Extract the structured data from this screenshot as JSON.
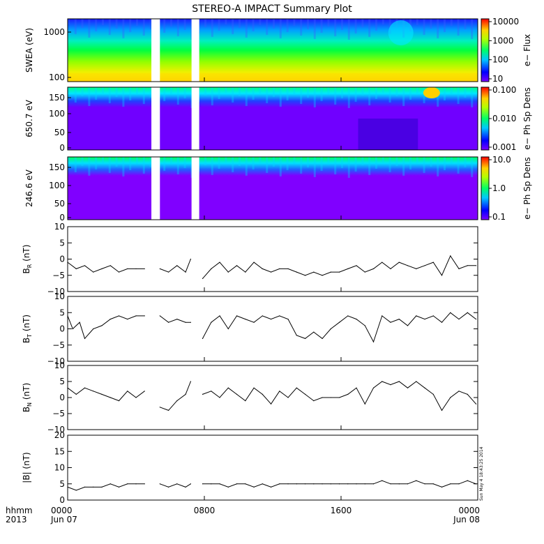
{
  "title": "STEREO-A IMPACT Summary Plot",
  "time_axis": {
    "row1_label": "hhmm",
    "row2_label": "2013",
    "ticks": [
      {
        "hours": 0,
        "time": "0000",
        "date": "Jun 07"
      },
      {
        "hours": 8,
        "time": "0800",
        "date": ""
      },
      {
        "hours": 16,
        "time": "1600",
        "date": ""
      },
      {
        "hours": 24,
        "time": "0000",
        "date": "Jun 08"
      }
    ]
  },
  "gaps_hours": [
    [
      4.9,
      5.4
    ],
    [
      7.25,
      7.7
    ]
  ],
  "spectrograms": [
    {
      "id": "swea",
      "ylabel": "SWEA (eV)",
      "yticks": [
        "1000",
        "100"
      ],
      "cbar_label": "e− Flux",
      "cbar_ticks": [
        "10000",
        "1000",
        "100",
        "10"
      ]
    },
    {
      "id": "pad650",
      "ylabel": "650.7 eV",
      "yticks": [
        "150",
        "100",
        "50",
        "0"
      ],
      "cbar_label": "e− Ph Sp Dens",
      "cbar_ticks": [
        "0.100",
        "0.010",
        "0.001"
      ]
    },
    {
      "id": "pad246",
      "ylabel": "246.6 eV",
      "yticks": [
        "150",
        "100",
        "50",
        "0"
      ],
      "cbar_label": "e− Ph Sp Dens",
      "cbar_ticks": [
        "10.0",
        "1.0",
        "0.1"
      ]
    }
  ],
  "stamp": "Sun May  4 18:43:25 2014",
  "chart_data": [
    {
      "type": "line",
      "id": "br",
      "ylabel": "B_R (nT)",
      "ylim": [
        -10,
        10
      ],
      "yticks": [
        "10",
        "5",
        "0",
        "−5",
        "−10"
      ],
      "x_hours": [
        0,
        0.5,
        1,
        1.5,
        2,
        2.5,
        3,
        3.5,
        4,
        4.5,
        5.4,
        5.9,
        6.4,
        6.9,
        7.2,
        7.9,
        8.4,
        8.9,
        9.4,
        9.9,
        10.4,
        10.9,
        11.4,
        11.9,
        12.4,
        12.9,
        13.4,
        13.9,
        14.4,
        14.9,
        15.4,
        15.9,
        16.4,
        16.9,
        17.4,
        17.9,
        18.4,
        18.9,
        19.4,
        19.9,
        20.4,
        20.9,
        21.4,
        21.9,
        22.4,
        22.9,
        23.4,
        23.9
      ],
      "values": [
        -1,
        -3,
        -2,
        -4,
        -3,
        -2,
        -4,
        -3,
        -3,
        -3,
        -3,
        -4,
        -2,
        -4,
        0,
        -6,
        -3,
        -1,
        -4,
        -2,
        -4,
        -1,
        -3,
        -4,
        -3,
        -3,
        -4,
        -5,
        -4,
        -5,
        -4,
        -4,
        -3,
        -2,
        -4,
        -3,
        -1,
        -3,
        -1,
        -2,
        -3,
        -2,
        -1,
        -5,
        1,
        -3,
        -2,
        -2
      ]
    },
    {
      "type": "line",
      "id": "bt",
      "ylabel": "B_T (nT)",
      "ylim": [
        -10,
        10
      ],
      "yticks": [
        "10",
        "5",
        "0",
        "−5",
        "−10"
      ],
      "x_hours": [
        0,
        0.3,
        0.7,
        1,
        1.5,
        2,
        2.5,
        3,
        3.5,
        4,
        4.5,
        5.4,
        5.9,
        6.4,
        6.9,
        7.2,
        7.9,
        8.4,
        8.9,
        9.4,
        9.9,
        10.4,
        10.9,
        11.4,
        11.9,
        12.4,
        12.9,
        13.4,
        13.9,
        14.4,
        14.9,
        15.4,
        15.9,
        16.4,
        16.9,
        17.4,
        17.9,
        18.4,
        18.9,
        19.4,
        19.9,
        20.4,
        20.9,
        21.4,
        21.9,
        22.4,
        22.9,
        23.4,
        23.9
      ],
      "values": [
        4,
        0,
        2,
        -3,
        0,
        1,
        3,
        4,
        3,
        4,
        4,
        4,
        2,
        3,
        2,
        2,
        -3,
        2,
        4,
        0,
        4,
        3,
        2,
        4,
        3,
        4,
        3,
        -2,
        -3,
        -1,
        -3,
        0,
        2,
        4,
        3,
        1,
        -4,
        4,
        2,
        3,
        1,
        4,
        3,
        4,
        2,
        5,
        3,
        5,
        3
      ]
    },
    {
      "type": "line",
      "id": "bn",
      "ylabel": "B_N (nT)",
      "ylim": [
        -10,
        10
      ],
      "yticks": [
        "10",
        "5",
        "0",
        "−5",
        "−10"
      ],
      "x_hours": [
        0,
        0.5,
        1,
        1.5,
        2,
        2.5,
        3,
        3.5,
        4,
        4.5,
        5.4,
        5.9,
        6.4,
        6.9,
        7.2,
        7.9,
        8.4,
        8.9,
        9.4,
        9.9,
        10.4,
        10.9,
        11.4,
        11.9,
        12.4,
        12.9,
        13.4,
        13.9,
        14.4,
        14.9,
        15.4,
        15.9,
        16.4,
        16.9,
        17.4,
        17.9,
        18.4,
        18.9,
        19.4,
        19.9,
        20.4,
        20.9,
        21.4,
        21.9,
        22.4,
        22.9,
        23.4,
        23.9
      ],
      "values": [
        3,
        1,
        3,
        2,
        1,
        0,
        -1,
        2,
        0,
        2,
        -3,
        -4,
        -1,
        1,
        5,
        1,
        2,
        0,
        3,
        1,
        -1,
        3,
        1,
        -2,
        2,
        0,
        3,
        1,
        -1,
        0,
        0,
        0,
        1,
        3,
        -2,
        3,
        5,
        4,
        5,
        3,
        5,
        3,
        1,
        -4,
        0,
        2,
        1,
        -2
      ]
    },
    {
      "type": "line",
      "id": "bmag",
      "ylabel": "|B| (nT)",
      "ylim": [
        0,
        20
      ],
      "yticks": [
        "20",
        "15",
        "10",
        "5",
        "0"
      ],
      "x_hours": [
        0,
        0.5,
        1,
        1.5,
        2,
        2.5,
        3,
        3.5,
        4,
        4.5,
        5.4,
        5.9,
        6.4,
        6.9,
        7.2,
        7.9,
        8.4,
        8.9,
        9.4,
        9.9,
        10.4,
        10.9,
        11.4,
        11.9,
        12.4,
        12.9,
        13.4,
        13.9,
        14.4,
        14.9,
        15.4,
        15.9,
        16.4,
        16.9,
        17.4,
        17.9,
        18.4,
        18.9,
        19.4,
        19.9,
        20.4,
        20.9,
        21.4,
        21.9,
        22.4,
        22.9,
        23.4,
        23.9
      ],
      "values": [
        4,
        3,
        4,
        4,
        4,
        5,
        4,
        5,
        5,
        5,
        5,
        4,
        5,
        4,
        5,
        5,
        5,
        5,
        4,
        5,
        5,
        4,
        5,
        4,
        5,
        5,
        5,
        5,
        5,
        5,
        5,
        5,
        5,
        5,
        5,
        5,
        6,
        5,
        5,
        5,
        6,
        5,
        5,
        4,
        5,
        5,
        6,
        5
      ]
    }
  ]
}
